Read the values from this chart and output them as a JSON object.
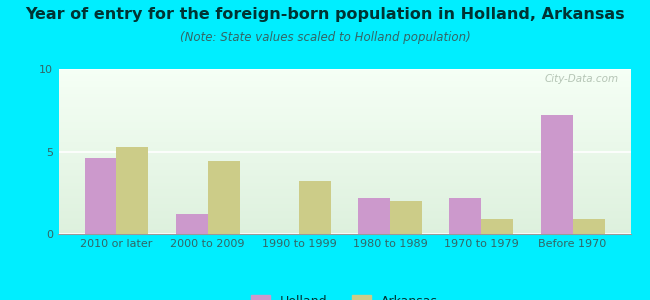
{
  "title": "Year of entry for the foreign-born population in Holland, Arkansas",
  "subtitle": "(Note: State values scaled to Holland population)",
  "categories": [
    "2010 or later",
    "2000 to 2009",
    "1990 to 1999",
    "1980 to 1989",
    "1970 to 1979",
    "Before 1970"
  ],
  "holland_values": [
    4.6,
    1.2,
    0.0,
    2.2,
    2.2,
    7.2
  ],
  "arkansas_values": [
    5.3,
    4.4,
    3.2,
    2.0,
    0.9,
    0.9
  ],
  "holland_color": "#cc99cc",
  "arkansas_color": "#cccc88",
  "background_outer": "#00eeff",
  "background_plot_top": "#f5fff5",
  "background_plot_bottom": "#ddf0dd",
  "ylim": [
    0,
    10
  ],
  "yticks": [
    0,
    5,
    10
  ],
  "bar_width": 0.35,
  "title_fontsize": 11.5,
  "subtitle_fontsize": 8.5,
  "tick_fontsize": 8,
  "legend_fontsize": 9,
  "watermark": "City-Data.com"
}
